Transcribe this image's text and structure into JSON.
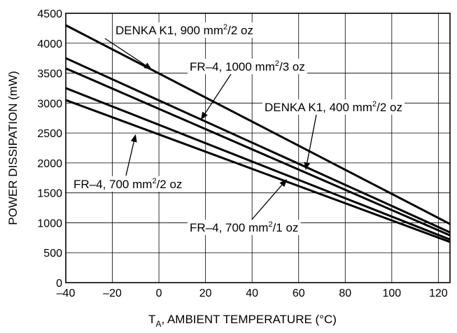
{
  "chart_data": {
    "type": "line",
    "title": "",
    "xlabel": {
      "main": "T",
      "sub": "A",
      "rest": ", AMBIENT TEMPERATURE (°C)"
    },
    "ylabel": "POWER DISSIPATION (mW)",
    "xlim": [
      -40,
      125
    ],
    "ylim": [
      0,
      4500
    ],
    "grid": true,
    "x_ticks": [
      -40,
      -20,
      0,
      20,
      40,
      60,
      80,
      100,
      120
    ],
    "y_ticks": [
      0,
      500,
      1000,
      1500,
      2000,
      2500,
      3000,
      3500,
      4000,
      4500
    ],
    "series": [
      {
        "name": {
          "pre": "DENKA K1, 900 mm",
          "sup": "2",
          "post": "/2 oz"
        },
        "x": [
          -40,
          125
        ],
        "y": [
          4300,
          980
        ],
        "annotation_point": [
          -3,
          3560
        ]
      },
      {
        "name": {
          "pre": "FR–4, 1000 mm",
          "sup": "2",
          "post": "/3 oz"
        },
        "x": [
          -40,
          125
        ],
        "y": [
          3750,
          840
        ],
        "annotation_point": [
          18,
          2720
        ]
      },
      {
        "name": {
          "pre": "DENKA K1, 400 mm",
          "sup": "2",
          "post": "/2 oz"
        },
        "x": [
          -40,
          125
        ],
        "y": [
          3580,
          790
        ],
        "annotation_point": [
          63,
          1880
        ]
      },
      {
        "name": {
          "pre": "FR–4, 700 mm",
          "sup": "2",
          "post": "/2 oz"
        },
        "x": [
          -40,
          125
        ],
        "y": [
          3250,
          720
        ],
        "annotation_point": [
          -10,
          2480
        ]
      },
      {
        "name": {
          "pre": "FR–4, 700 mm",
          "sup": "2",
          "post": "/1 oz"
        },
        "x": [
          -40,
          125
        ],
        "y": [
          3050,
          680
        ],
        "annotation_point": [
          55,
          1730
        ]
      }
    ]
  }
}
